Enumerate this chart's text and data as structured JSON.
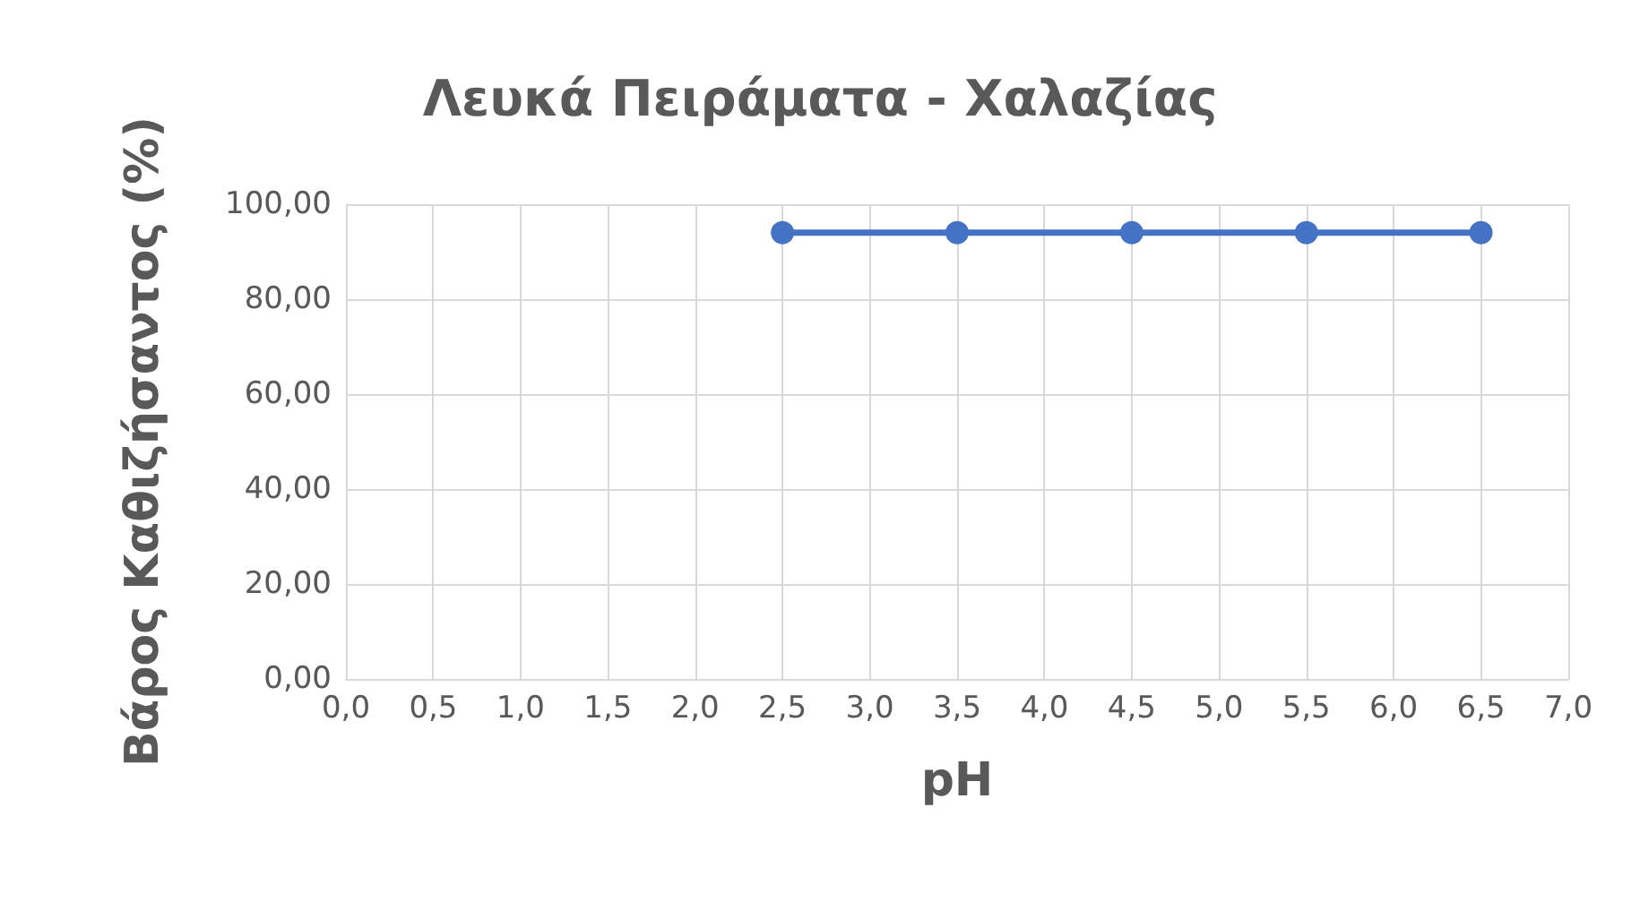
{
  "chart_data": {
    "type": "line",
    "title": "Λευκά Πειράματα - Χαλαζίας",
    "xlabel": "pH",
    "ylabel": "Βάρος Καθιζήσαντος (%)",
    "x": [
      2.5,
      3.5,
      4.5,
      5.5,
      6.5
    ],
    "series": [
      {
        "color": "#4472c4",
        "values": [
          94,
          94,
          94,
          94,
          94
        ]
      }
    ],
    "xlim": [
      0,
      7
    ],
    "xticks": [
      {
        "value": 0,
        "label": "0,0"
      },
      {
        "value": 0.5,
        "label": "0,5"
      },
      {
        "value": 1,
        "label": "1,0"
      },
      {
        "value": 1.5,
        "label": "1,5"
      },
      {
        "value": 2,
        "label": "2,0"
      },
      {
        "value": 2.5,
        "label": "2,5"
      },
      {
        "value": 3,
        "label": "3,0"
      },
      {
        "value": 3.5,
        "label": "3,5"
      },
      {
        "value": 4,
        "label": "4,0"
      },
      {
        "value": 4.5,
        "label": "4,5"
      },
      {
        "value": 5,
        "label": "5,0"
      },
      {
        "value": 5.5,
        "label": "5,5"
      },
      {
        "value": 6,
        "label": "6,0"
      },
      {
        "value": 6.5,
        "label": "6,5"
      },
      {
        "value": 7,
        "label": "7,0"
      }
    ],
    "ylim": [
      0,
      100
    ],
    "yticks": [
      {
        "value": 0,
        "label": "0,00"
      },
      {
        "value": 20,
        "label": "20,00"
      },
      {
        "value": 40,
        "label": "40,00"
      },
      {
        "value": 60,
        "label": "60,00"
      },
      {
        "value": 80,
        "label": "80,00"
      },
      {
        "value": 100,
        "label": "100,00"
      }
    ],
    "grid": true,
    "marker": "circle",
    "line_style": "solid"
  }
}
